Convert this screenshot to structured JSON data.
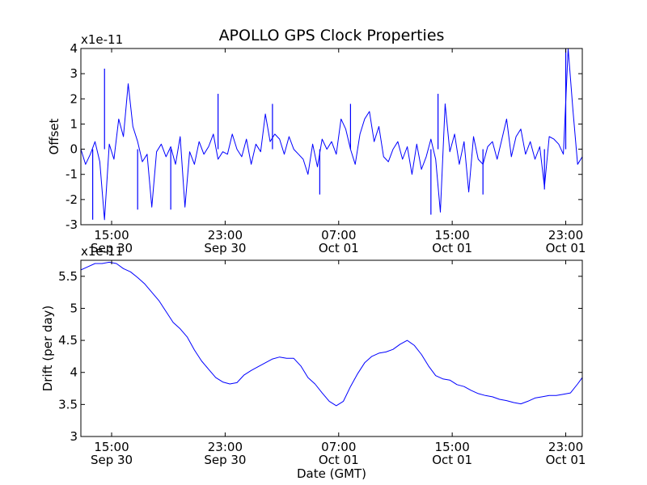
{
  "chart_data": [
    {
      "type": "line",
      "title": "APOLLO GPS Clock Properties",
      "ylabel": "Offset",
      "xlabel": "",
      "y_multiplier_label": "x1e-11",
      "ylim": [
        -3,
        4
      ],
      "yticks": [
        -3,
        -2,
        -1,
        0,
        1,
        2,
        3,
        4
      ],
      "x_axis": "time (GMT), Sep 30 12:50 to Oct 02 00:10",
      "xlim": [
        "Sep 30 12:50",
        "Oct 02 00:10"
      ],
      "xticks": [
        {
          "time": "Sep 30 15:00",
          "label_time": "15:00",
          "label_date": "Sep 30"
        },
        {
          "time": "Sep 30 23:00",
          "label_time": "23:00",
          "label_date": "Sep 30"
        },
        {
          "time": "Oct 01 07:00",
          "label_time": "07:00",
          "label_date": "Oct 01"
        },
        {
          "time": "Oct 01 15:00",
          "label_time": "15:00",
          "label_date": "Oct 01"
        },
        {
          "time": "Oct 01 23:00",
          "label_time": "23:00",
          "label_date": "Oct 01"
        }
      ],
      "color": "#0000ff",
      "series": [
        {
          "x": [
            "Sep 30 12:50",
            "Sep 30 13:10",
            "Sep 30 13:30",
            "Sep 30 13:50",
            "Sep 30 14:10",
            "Sep 30 14:30",
            "Sep 30 14:50",
            "Sep 30 15:10",
            "Sep 30 15:30",
            "Sep 30 15:50",
            "Sep 30 16:10",
            "Sep 30 16:30",
            "Sep 30 16:50",
            "Sep 30 17:10",
            "Sep 30 17:30",
            "Sep 30 17:50",
            "Sep 30 18:10",
            "Sep 30 18:30",
            "Sep 30 18:50",
            "Sep 30 19:10",
            "Sep 30 19:30",
            "Sep 30 19:50",
            "Sep 30 20:10",
            "Sep 30 20:30",
            "Sep 30 20:50",
            "Sep 30 21:10",
            "Sep 30 21:30",
            "Sep 30 21:50",
            "Sep 30 22:10",
            "Sep 30 22:30",
            "Sep 30 22:50",
            "Sep 30 23:10",
            "Sep 30 23:30",
            "Sep 30 23:50",
            "Oct 01 00:10",
            "Oct 01 00:30",
            "Oct 01 00:50",
            "Oct 01 01:10",
            "Oct 01 01:30",
            "Oct 01 01:50",
            "Oct 01 02:10",
            "Oct 01 02:30",
            "Oct 01 02:50",
            "Oct 01 03:10",
            "Oct 01 03:30",
            "Oct 01 03:50",
            "Oct 01 04:10",
            "Oct 01 04:30",
            "Oct 01 04:50",
            "Oct 01 05:10",
            "Oct 01 05:30",
            "Oct 01 05:50",
            "Oct 01 06:10",
            "Oct 01 06:30",
            "Oct 01 06:50",
            "Oct 01 07:10",
            "Oct 01 07:30",
            "Oct 01 07:50",
            "Oct 01 08:10",
            "Oct 01 08:30",
            "Oct 01 08:50",
            "Oct 01 09:10",
            "Oct 01 09:30",
            "Oct 01 09:50",
            "Oct 01 10:10",
            "Oct 01 10:30",
            "Oct 01 10:50",
            "Oct 01 11:10",
            "Oct 01 11:30",
            "Oct 01 11:50",
            "Oct 01 12:10",
            "Oct 01 12:30",
            "Oct 01 12:50",
            "Oct 01 13:10",
            "Oct 01 13:30",
            "Oct 01 13:50",
            "Oct 01 14:10",
            "Oct 01 14:30",
            "Oct 01 14:50",
            "Oct 01 15:10",
            "Oct 01 15:30",
            "Oct 01 15:50",
            "Oct 01 16:10",
            "Oct 01 16:30",
            "Oct 01 16:50",
            "Oct 01 17:10",
            "Oct 01 17:30",
            "Oct 01 17:50",
            "Oct 01 18:10",
            "Oct 01 18:30",
            "Oct 01 18:50",
            "Oct 01 19:10",
            "Oct 01 19:30",
            "Oct 01 19:50",
            "Oct 01 20:10",
            "Oct 01 20:30",
            "Oct 01 20:50",
            "Oct 01 21:10",
            "Oct 01 21:30",
            "Oct 01 21:50",
            "Oct 01 22:10",
            "Oct 01 22:30",
            "Oct 01 22:50",
            "Oct 01 23:10",
            "Oct 01 23:30",
            "Oct 01 23:50",
            "Oct 02 00:10"
          ],
          "y": [
            0.0,
            -0.6,
            -0.2,
            0.3,
            -0.5,
            -2.8,
            0.2,
            -0.4,
            1.2,
            0.5,
            2.6,
            0.9,
            0.3,
            -0.5,
            -0.2,
            -2.3,
            -0.1,
            0.2,
            -0.3,
            0.1,
            -0.6,
            0.5,
            -2.3,
            -0.1,
            -0.6,
            0.3,
            -0.2,
            0.1,
            0.6,
            -0.4,
            -0.1,
            -0.2,
            0.6,
            0.0,
            -0.3,
            0.4,
            -0.6,
            0.2,
            -0.1,
            1.4,
            0.3,
            0.6,
            0.4,
            -0.2,
            0.5,
            0.0,
            -0.2,
            -0.4,
            -1.0,
            0.2,
            -0.7,
            0.4,
            0.0,
            0.3,
            -0.2,
            1.2,
            0.8,
            0.0,
            -0.6,
            0.6,
            1.2,
            1.5,
            0.3,
            0.9,
            -0.3,
            -0.5,
            0.0,
            0.3,
            -0.4,
            0.1,
            -1.0,
            0.2,
            -0.8,
            -0.3,
            0.4,
            -0.4,
            -2.5,
            1.8,
            -0.1,
            0.6,
            -0.6,
            0.3,
            -1.7,
            0.5,
            -0.4,
            -0.6,
            0.1,
            0.3,
            -0.4,
            0.4,
            1.2,
            -0.3,
            0.5,
            0.8,
            -0.2,
            0.3,
            -0.4,
            0.1,
            -1.5,
            0.5,
            0.4,
            0.2,
            -0.2,
            4.0,
            1.6,
            -0.6,
            -0.3
          ],
          "overlay_spikes": [
            {
              "x": "Sep 30 13:40",
              "y": -2.8
            },
            {
              "x": "Sep 30 14:30",
              "y": 3.2
            },
            {
              "x": "Sep 30 16:50",
              "y": -2.4
            },
            {
              "x": "Sep 30 19:10",
              "y": -2.4
            },
            {
              "x": "Sep 30 22:30",
              "y": 2.2
            },
            {
              "x": "Oct 01 02:20",
              "y": 1.8
            },
            {
              "x": "Oct 01 05:40",
              "y": -1.8
            },
            {
              "x": "Oct 01 07:50",
              "y": 1.8
            },
            {
              "x": "Oct 01 13:30",
              "y": -2.6
            },
            {
              "x": "Oct 01 14:00",
              "y": 2.2
            },
            {
              "x": "Oct 01 17:10",
              "y": -1.8
            },
            {
              "x": "Oct 01 21:30",
              "y": -1.6
            },
            {
              "x": "Oct 01 23:00",
              "y": 4.0
            }
          ]
        }
      ]
    },
    {
      "type": "line",
      "title": "",
      "ylabel": "Drift (per day)",
      "xlabel": "Date (GMT)",
      "y_multiplier_label": "x1e-11",
      "ylim": [
        3.0,
        5.75
      ],
      "yticks": [
        3.0,
        3.5,
        4.0,
        4.5,
        5.0,
        5.5
      ],
      "x_axis": "time (GMT), Sep 30 12:50 to Oct 02 00:10",
      "xlim": [
        "Sep 30 12:50",
        "Oct 02 00:10"
      ],
      "xticks": [
        {
          "time": "Sep 30 15:00",
          "label_time": "15:00",
          "label_date": "Sep 30"
        },
        {
          "time": "Sep 30 23:00",
          "label_time": "23:00",
          "label_date": "Sep 30"
        },
        {
          "time": "Oct 01 07:00",
          "label_time": "07:00",
          "label_date": "Oct 01"
        },
        {
          "time": "Oct 01 15:00",
          "label_time": "15:00",
          "label_date": "Oct 01"
        },
        {
          "time": "Oct 01 23:00",
          "label_time": "23:00",
          "label_date": "Oct 01"
        }
      ],
      "color": "#0000ff",
      "series": [
        {
          "x": [
            "Sep 30 12:50",
            "Sep 30 13:20",
            "Sep 30 13:50",
            "Sep 30 14:20",
            "Sep 30 14:50",
            "Sep 30 15:20",
            "Sep 30 15:50",
            "Sep 30 16:20",
            "Sep 30 16:50",
            "Sep 30 17:20",
            "Sep 30 17:50",
            "Sep 30 18:20",
            "Sep 30 18:50",
            "Sep 30 19:20",
            "Sep 30 19:50",
            "Sep 30 20:20",
            "Sep 30 20:50",
            "Sep 30 21:20",
            "Sep 30 21:50",
            "Sep 30 22:20",
            "Sep 30 22:50",
            "Sep 30 23:20",
            "Sep 30 23:50",
            "Oct 01 00:20",
            "Oct 01 00:50",
            "Oct 01 01:20",
            "Oct 01 01:50",
            "Oct 01 02:20",
            "Oct 01 02:50",
            "Oct 01 03:20",
            "Oct 01 03:50",
            "Oct 01 04:20",
            "Oct 01 04:50",
            "Oct 01 05:20",
            "Oct 01 05:50",
            "Oct 01 06:20",
            "Oct 01 06:50",
            "Oct 01 07:20",
            "Oct 01 07:50",
            "Oct 01 08:20",
            "Oct 01 08:50",
            "Oct 01 09:20",
            "Oct 01 09:50",
            "Oct 01 10:20",
            "Oct 01 10:50",
            "Oct 01 11:20",
            "Oct 01 11:50",
            "Oct 01 12:20",
            "Oct 01 12:50",
            "Oct 01 13:20",
            "Oct 01 13:50",
            "Oct 01 14:20",
            "Oct 01 14:50",
            "Oct 01 15:20",
            "Oct 01 15:50",
            "Oct 01 16:20",
            "Oct 01 16:50",
            "Oct 01 17:20",
            "Oct 01 17:50",
            "Oct 01 18:20",
            "Oct 01 18:50",
            "Oct 01 19:20",
            "Oct 01 19:50",
            "Oct 01 20:20",
            "Oct 01 20:50",
            "Oct 01 21:20",
            "Oct 01 21:50",
            "Oct 01 22:20",
            "Oct 01 22:50",
            "Oct 01 23:20",
            "Oct 01 23:50",
            "Oct 02 00:10"
          ],
          "y": [
            5.6,
            5.65,
            5.7,
            5.7,
            5.72,
            5.7,
            5.62,
            5.57,
            5.48,
            5.38,
            5.25,
            5.12,
            4.95,
            4.78,
            4.68,
            4.55,
            4.35,
            4.18,
            4.05,
            3.92,
            3.85,
            3.82,
            3.84,
            3.96,
            4.03,
            4.09,
            4.15,
            4.21,
            4.24,
            4.22,
            4.22,
            4.1,
            3.92,
            3.82,
            3.68,
            3.55,
            3.48,
            3.55,
            3.78,
            3.98,
            4.15,
            4.25,
            4.3,
            4.32,
            4.36,
            4.44,
            4.5,
            4.42,
            4.28,
            4.1,
            3.95,
            3.9,
            3.88,
            3.81,
            3.78,
            3.72,
            3.67,
            3.64,
            3.62,
            3.58,
            3.56,
            3.53,
            3.51,
            3.55,
            3.6,
            3.62,
            3.64,
            3.64,
            3.66,
            3.68,
            3.82,
            3.92
          ]
        }
      ]
    }
  ]
}
